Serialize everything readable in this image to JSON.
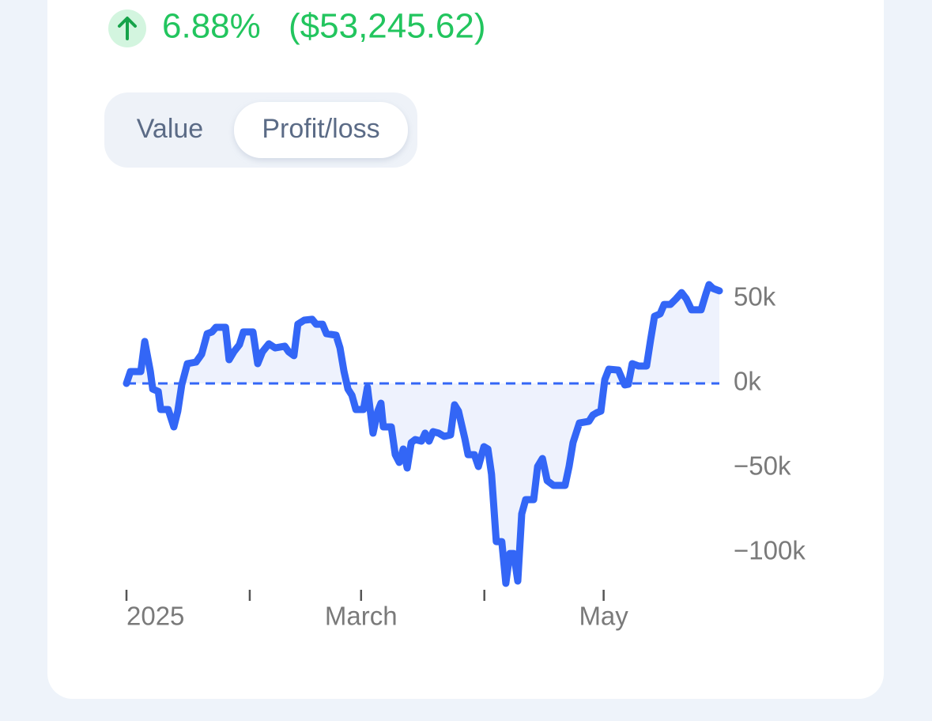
{
  "header": {
    "change_percent": "6.88%",
    "change_amount": "($53,245.62)"
  },
  "tabs": {
    "items": [
      "Value",
      "Profit/loss"
    ],
    "active": 1
  },
  "chart_data": {
    "type": "line",
    "x": [
      0,
      1.0,
      3.6,
      4.6,
      6.0,
      6.6,
      8.0,
      8.6,
      10.5,
      11.9,
      12.9,
      13.9,
      15.3,
      17.5,
      18.9,
      20.3,
      21.5,
      22.5,
      24.9,
      25.8,
      27.0,
      28.4,
      29.4,
      31.8,
      33.0,
      34.2,
      35.8,
      37.4,
      39.8,
      40.8,
      42.1,
      43.1,
      44.7,
      46.7,
      47.7,
      49.3,
      50.3,
      52.7,
      53.7,
      54.7,
      55.7,
      56.7,
      57.7,
      59.6,
      60.6,
      62.0,
      63.2,
      64.0,
      64.6,
      66.6,
      67.6,
      68.6,
      69.6,
      70.6,
      71.6,
      72.6,
      74.2,
      75.1,
      76.1,
      77.1,
      78.5,
      79.9,
      81.5,
      82.5,
      83.5,
      85.1,
      85.9,
      87.5,
      88.5,
      89.9,
      90.9,
      91.8,
      93.0,
      94.4,
      95.4,
      96.4,
      97.4,
      98.4,
      99.4,
      100.4,
      102.4,
      103.4,
      104.6,
      105.8,
      107.4,
      110.3,
      111.3,
      112.3,
      113.9,
      116.3,
      117.3,
      118.3,
      119.3,
      120.3,
      121.3,
      123.7,
      125.3,
      126.2,
      127.2,
      128.8,
      130.8,
      131.8,
      132.8,
      134.2,
      135.2,
      136.8,
      138.2,
      139.6,
      140.8,
      142.1,
      144.5,
      145.7,
      146.5,
      147.5,
      149.1
    ],
    "series": [
      {
        "name": "Profit/loss",
        "color": "#3366f6",
        "values": [
          0,
          7000,
          7000,
          24800,
          7000,
          -3300,
          -4700,
          -15400,
          -15400,
          -25700,
          -16400,
          -900,
          11700,
          12600,
          17300,
          29400,
          30400,
          33200,
          33200,
          14000,
          18700,
          22900,
          30400,
          30400,
          11700,
          18700,
          23400,
          21000,
          22000,
          18700,
          16400,
          35000,
          37400,
          37900,
          35000,
          35000,
          29400,
          28500,
          21000,
          7000,
          -3300,
          -7000,
          -15400,
          -15400,
          -2300,
          -29400,
          -16400,
          -11700,
          -25700,
          -25700,
          -42100,
          -46700,
          -38800,
          -50000,
          -35000,
          -33200,
          -34100,
          -29400,
          -34100,
          -28500,
          -29400,
          -31300,
          -30400,
          -12600,
          -16400,
          -32700,
          -42100,
          -42100,
          -49100,
          -37400,
          -38800,
          -53700,
          -93500,
          -93500,
          -118200,
          -100500,
          -100500,
          -116800,
          -77100,
          -68700,
          -68700,
          -49100,
          -44400,
          -57500,
          -60300,
          -60300,
          -49100,
          -35000,
          -23400,
          -22400,
          -18700,
          -17300,
          -16400,
          2300,
          8400,
          7900,
          -900,
          -500,
          11700,
          10300,
          10300,
          25700,
          39700,
          41100,
          46700,
          46700,
          50000,
          53700,
          50000,
          43500,
          43500,
          52800,
          58400,
          56100,
          54700
        ]
      }
    ],
    "xlim": [
      0,
      149.1
    ],
    "xticks": [
      {
        "value": 0,
        "label": "2025"
      },
      {
        "value": 31,
        "label": null
      },
      {
        "value": 59,
        "label": "March"
      },
      {
        "value": 90,
        "label": null
      },
      {
        "value": 120,
        "label": "May"
      }
    ],
    "ylim": [
      -125000,
      65000
    ],
    "yticks": [
      {
        "value": 50000,
        "label": "50k"
      },
      {
        "value": 0,
        "label": "0k"
      },
      {
        "value": -50000,
        "label": "−50k"
      },
      {
        "value": -100000,
        "label": "−100k"
      }
    ],
    "reference_line": 0,
    "area_color": "#eef2fd"
  }
}
